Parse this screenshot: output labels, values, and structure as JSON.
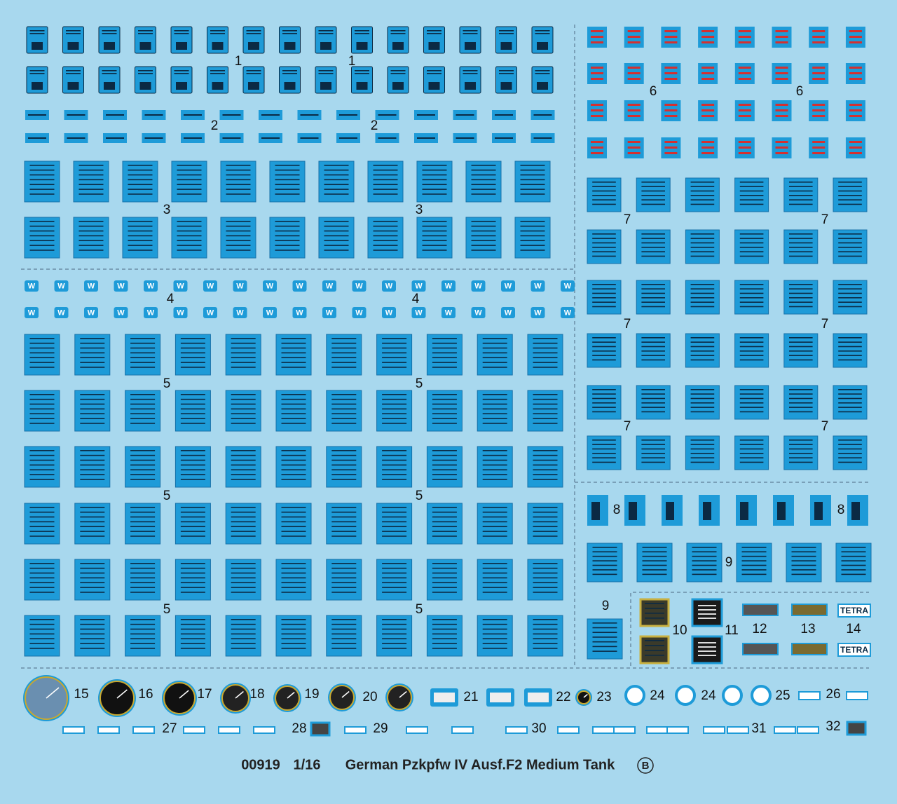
{
  "section_labels": [
    "1",
    "1",
    "2",
    "2",
    "3",
    "3",
    "4",
    "4",
    "5",
    "5",
    "5",
    "5",
    "5",
    "5",
    "6",
    "6",
    "7",
    "7",
    "7",
    "7",
    "7",
    "7",
    "8",
    "8",
    "9",
    "9",
    "10",
    "11",
    "12",
    "13",
    "14",
    "15",
    "16",
    "17",
    "18",
    "19",
    "20",
    "21",
    "22",
    "23",
    "24",
    "24",
    "25",
    "26",
    "27",
    "28",
    "29",
    "30",
    "31",
    "32"
  ],
  "decal_text": {
    "w": "W",
    "tetra": "TETRA"
  },
  "footer": {
    "code": "00919",
    "scale": "1/16",
    "title": "German Pzkpfw IV Ausf.F2 Medium Tank",
    "version": "B"
  }
}
